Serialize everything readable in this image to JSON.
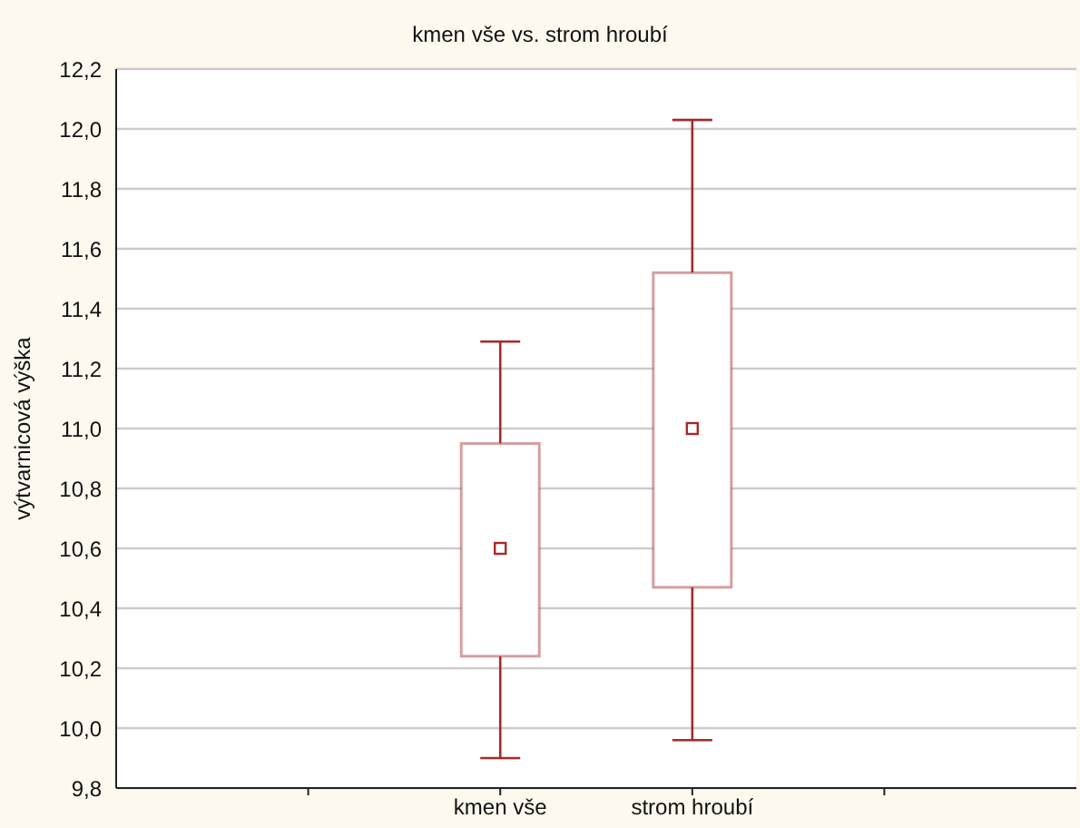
{
  "chart_data": {
    "type": "box",
    "title": "kmen vše vs. strom hroubí",
    "ylabel": "výtvarnicová výška",
    "categories": [
      null,
      "kmen vše",
      "strom hroubí",
      null
    ],
    "boxes": [
      null,
      {
        "low": 9.9,
        "q1": 10.24,
        "median": 10.6,
        "q3": 10.95,
        "high": 11.29
      },
      {
        "low": 9.96,
        "q1": 10.47,
        "median": 11.0,
        "q3": 11.52,
        "high": 12.03
      },
      null
    ],
    "color": "#a52a2a",
    "ylim": [
      9.8,
      12.2
    ],
    "yticks": [
      {
        "value": 9.8,
        "label": "9,8"
      },
      {
        "value": 10,
        "label": "10,0"
      },
      {
        "value": 10.2,
        "label": "10,2"
      },
      {
        "value": 10.4,
        "label": "10,4"
      },
      {
        "value": 10.6,
        "label": "10,6"
      },
      {
        "value": 10.8,
        "label": "10,8"
      },
      {
        "value": 11,
        "label": "11,0"
      },
      {
        "value": 11.2,
        "label": "11,2"
      },
      {
        "value": 11.4,
        "label": "11,4"
      },
      {
        "value": 11.6,
        "label": "11,6"
      },
      {
        "value": 11.8,
        "label": "11,8"
      },
      {
        "value": 12,
        "label": "12,0"
      },
      {
        "value": 12.2,
        "label": "12,2"
      }
    ],
    "grid": "y"
  }
}
